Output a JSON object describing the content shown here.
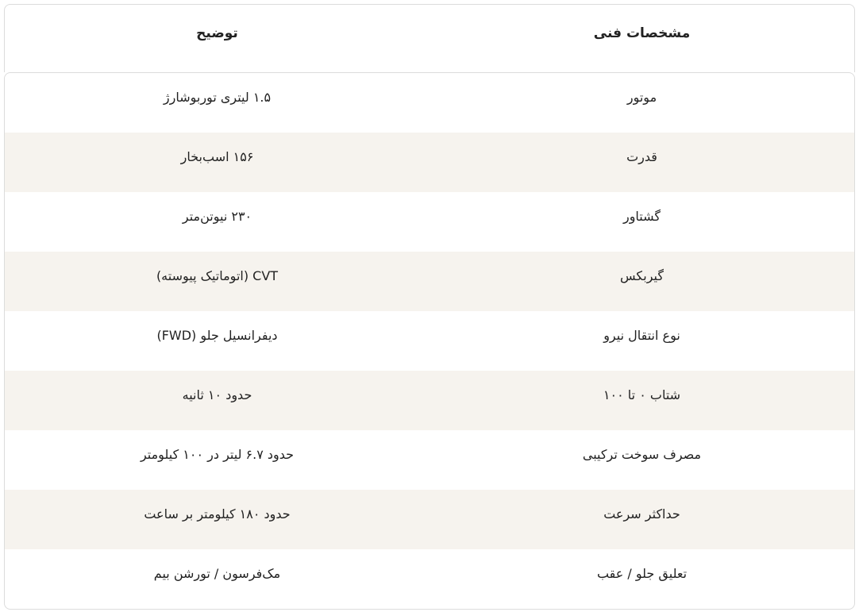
{
  "header": {
    "spec": "مشخصات فنی",
    "description": "توضیح"
  },
  "rows": [
    {
      "spec": "موتور",
      "description": "۱.۵ لیتری توربوشارژ"
    },
    {
      "spec": "قدرت",
      "description": "۱۵۶ اسب‌بخار"
    },
    {
      "spec": "گشتاور",
      "description": "۲۳۰ نیوتن‌متر"
    },
    {
      "spec": "گیربکس",
      "description": "CVT (اتوماتیک پیوسته)"
    },
    {
      "spec": "نوع انتقال نیرو",
      "description": "دیفرانسیل جلو (FWD)"
    },
    {
      "spec": "شتاب ۰ تا ۱۰۰",
      "description": "حدود ۱۰ ثانیه"
    },
    {
      "spec": "مصرف سوخت ترکیبی",
      "description": "حدود ۶.۷ لیتر در ۱۰۰ کیلومتر"
    },
    {
      "spec": "حداکثر سرعت",
      "description": "حدود ۱۸۰ کیلومتر بر ساعت"
    },
    {
      "spec": "تعلیق جلو / عقب",
      "description": "مک‌فرسون / تورشن بیم"
    }
  ],
  "colors": {
    "stripe": "#f6f3ee",
    "border": "#dcdcdc"
  }
}
